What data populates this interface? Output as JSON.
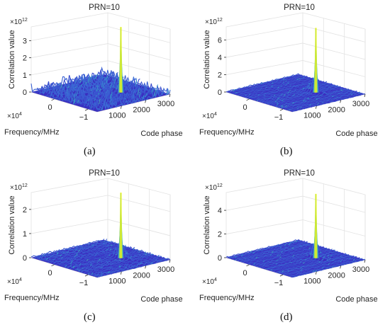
{
  "chart_data": [
    {
      "type": "surface3d",
      "caption": "(a)",
      "title": "PRN=10",
      "zlabel": "Correlation value",
      "xlabel": "Code phase",
      "ylabel": "Frequency/MHz",
      "z_multiplier": "×10",
      "z_multiplier_exp": "12",
      "y_multiplier": "×10",
      "y_multiplier_exp": "4",
      "z_ticks": [
        "0",
        "1",
        "2",
        "3"
      ],
      "x_ticks": [
        "1000",
        "2000",
        "3000"
      ],
      "y_ticks": [
        "−1",
        "0"
      ],
      "zlim": [
        0,
        3.8
      ],
      "peak": {
        "code_phase": 2000,
        "frequency": 0,
        "value": 3.8
      },
      "noise_floor": 0.6,
      "colormap": [
        "#3b2bc6",
        "#3b6fd6",
        "#33b7c3",
        "#a6d85a",
        "#f9fb0e"
      ]
    },
    {
      "type": "surface3d",
      "caption": "(b)",
      "title": "PRN=10",
      "zlabel": "Correlation value",
      "xlabel": "Code phase",
      "ylabel": "Frequency/MHz",
      "z_multiplier": "×10",
      "z_multiplier_exp": "12",
      "y_multiplier": "×10",
      "y_multiplier_exp": "4",
      "z_ticks": [
        "0",
        "2",
        "4",
        "6"
      ],
      "x_ticks": [
        "1000",
        "2000",
        "3000"
      ],
      "y_ticks": [
        "−1",
        "0"
      ],
      "zlim": [
        0,
        7.5
      ],
      "peak": {
        "code_phase": 2000,
        "frequency": 0,
        "value": 7.4
      },
      "noise_floor": 0.15,
      "colormap": [
        "#3b2bc6",
        "#3b6fd6",
        "#33b7c3",
        "#a6d85a",
        "#f9fb0e"
      ]
    },
    {
      "type": "surface3d",
      "caption": "(c)",
      "title": "PRN=10",
      "zlabel": "Correlation value",
      "xlabel": "Code phase",
      "ylabel": "Frequency/MHz",
      "z_multiplier": "×10",
      "z_multiplier_exp": "12",
      "y_multiplier": "×10",
      "y_multiplier_exp": "4",
      "z_ticks": [
        "0",
        "1",
        "2"
      ],
      "x_ticks": [
        "1000",
        "2000",
        "3000"
      ],
      "y_ticks": [
        "−1",
        "0"
      ],
      "zlim": [
        0,
        2.7
      ],
      "peak": {
        "code_phase": 2000,
        "frequency": 0,
        "value": 2.7
      },
      "noise_floor": 0.1,
      "colormap": [
        "#3b2bc6",
        "#3b6fd6",
        "#33b7c3",
        "#a6d85a",
        "#f9fb0e"
      ]
    },
    {
      "type": "surface3d",
      "caption": "(d)",
      "title": "PRN=10",
      "zlabel": "Correlation value",
      "xlabel": "Code phase",
      "ylabel": "Frequency/MHz",
      "z_multiplier": "×10",
      "z_multiplier_exp": "12",
      "y_multiplier": "×10",
      "y_multiplier_exp": "4",
      "z_ticks": [
        "0",
        "2",
        "4"
      ],
      "x_ticks": [
        "1000",
        "2000",
        "3000"
      ],
      "y_ticks": [
        "−1",
        "0"
      ],
      "zlim": [
        0,
        5.5
      ],
      "peak": {
        "code_phase": 2000,
        "frequency": 0,
        "value": 5.4
      },
      "noise_floor": 0.12,
      "colormap": [
        "#3b2bc6",
        "#3b6fd6",
        "#33b7c3",
        "#a6d85a",
        "#f9fb0e"
      ]
    }
  ]
}
